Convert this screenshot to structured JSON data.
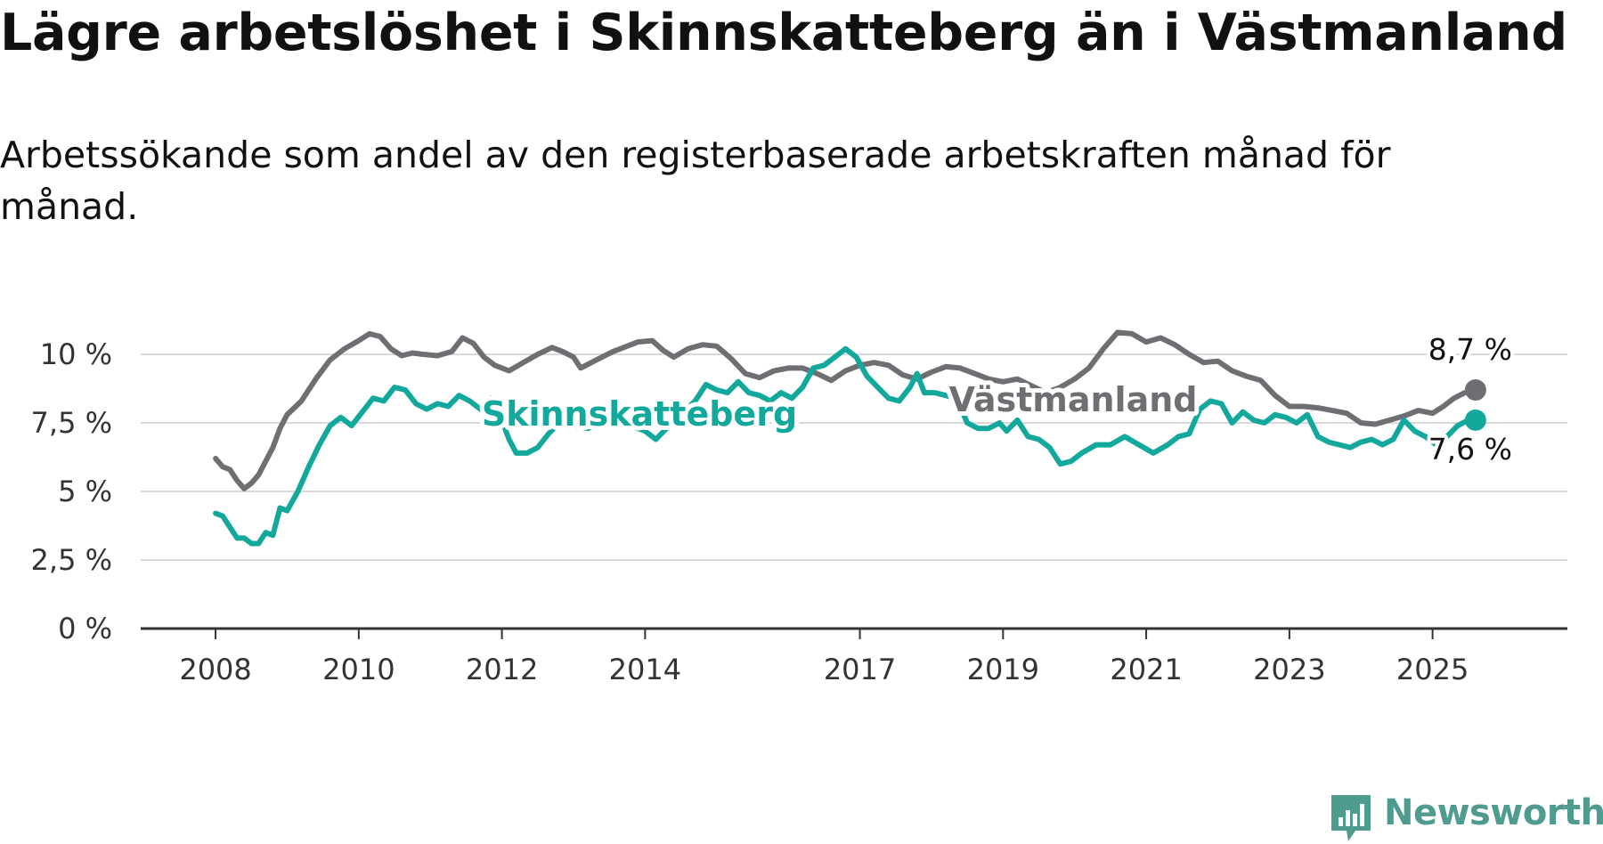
{
  "title": "Lägre arbetslöshet i Skinnskatteberg än i Västmanland",
  "subtitle": "Arbetssökande som andel av den registerbaserade arbetskraften månad för månad.",
  "brand": {
    "name": "Newsworthy",
    "icon": "bar-chart-icon",
    "color": "#4f9b8f"
  },
  "chart_data": {
    "type": "line",
    "title": "Lägre arbetslöshet i Skinnskatteberg än i Västmanland",
    "subtitle": "Arbetssökande som andel av den registerbaserade arbetskraften månad för månad.",
    "xlabel": "",
    "ylabel": "",
    "x_unit": "year",
    "x_range": [
      2007.85,
      2025.95
    ],
    "xticks": [
      2008,
      2010,
      2012,
      2014,
      2017,
      2019,
      2021,
      2023,
      2025
    ],
    "xtick_labels": [
      "2008",
      "2010",
      "2012",
      "2014",
      "2017",
      "2019",
      "2021",
      "2023",
      "2025"
    ],
    "ylim": [
      0,
      10
    ],
    "yticks": [
      0,
      2.5,
      5,
      7.5,
      10
    ],
    "ytick_labels": [
      "0 %",
      "2,5 %",
      "5 %",
      "7,5 %",
      "10 %"
    ],
    "grid": "horizontal",
    "legend": "direct labels on lines",
    "series": [
      {
        "name": "Västmanland",
        "color": "#6f6e73",
        "end_label": "8,7 %",
        "points": [
          [
            2008.0,
            6.2
          ],
          [
            2008.1,
            5.9
          ],
          [
            2008.2,
            5.8
          ],
          [
            2008.3,
            5.4
          ],
          [
            2008.4,
            5.1
          ],
          [
            2008.5,
            5.3
          ],
          [
            2008.6,
            5.6
          ],
          [
            2008.7,
            6.1
          ],
          [
            2008.8,
            6.6
          ],
          [
            2008.9,
            7.3
          ],
          [
            2009.0,
            7.8
          ],
          [
            2009.2,
            8.3
          ],
          [
            2009.4,
            9.1
          ],
          [
            2009.6,
            9.8
          ],
          [
            2009.8,
            10.2
          ],
          [
            2010.0,
            10.5
          ],
          [
            2010.15,
            10.75
          ],
          [
            2010.3,
            10.65
          ],
          [
            2010.45,
            10.2
          ],
          [
            2010.6,
            9.95
          ],
          [
            2010.75,
            10.05
          ],
          [
            2010.9,
            10.0
          ],
          [
            2011.1,
            9.95
          ],
          [
            2011.3,
            10.1
          ],
          [
            2011.45,
            10.6
          ],
          [
            2011.6,
            10.4
          ],
          [
            2011.75,
            9.9
          ],
          [
            2011.9,
            9.6
          ],
          [
            2012.1,
            9.4
          ],
          [
            2012.3,
            9.7
          ],
          [
            2012.5,
            10.0
          ],
          [
            2012.7,
            10.25
          ],
          [
            2012.85,
            10.1
          ],
          [
            2013.0,
            9.9
          ],
          [
            2013.1,
            9.5
          ],
          [
            2013.25,
            9.7
          ],
          [
            2013.4,
            9.9
          ],
          [
            2013.55,
            10.1
          ],
          [
            2013.7,
            10.25
          ],
          [
            2013.9,
            10.45
          ],
          [
            2014.1,
            10.5
          ],
          [
            2014.25,
            10.15
          ],
          [
            2014.4,
            9.9
          ],
          [
            2014.6,
            10.2
          ],
          [
            2014.8,
            10.35
          ],
          [
            2015.0,
            10.3
          ],
          [
            2015.2,
            9.85
          ],
          [
            2015.4,
            9.3
          ],
          [
            2015.6,
            9.15
          ],
          [
            2015.8,
            9.4
          ],
          [
            2016.0,
            9.5
          ],
          [
            2016.2,
            9.5
          ],
          [
            2016.4,
            9.3
          ],
          [
            2016.6,
            9.05
          ],
          [
            2016.8,
            9.4
          ],
          [
            2017.0,
            9.6
          ],
          [
            2017.2,
            9.7
          ],
          [
            2017.4,
            9.6
          ],
          [
            2017.6,
            9.25
          ],
          [
            2017.8,
            9.1
          ],
          [
            2018.0,
            9.35
          ],
          [
            2018.2,
            9.55
          ],
          [
            2018.4,
            9.5
          ],
          [
            2018.6,
            9.3
          ],
          [
            2018.8,
            9.1
          ],
          [
            2019.0,
            9.0
          ],
          [
            2019.2,
            9.1
          ],
          [
            2019.4,
            8.85
          ],
          [
            2019.6,
            8.6
          ],
          [
            2019.8,
            8.8
          ],
          [
            2020.0,
            9.1
          ],
          [
            2020.2,
            9.5
          ],
          [
            2020.4,
            10.2
          ],
          [
            2020.6,
            10.8
          ],
          [
            2020.8,
            10.75
          ],
          [
            2021.0,
            10.45
          ],
          [
            2021.2,
            10.6
          ],
          [
            2021.4,
            10.35
          ],
          [
            2021.6,
            10.0
          ],
          [
            2021.8,
            9.7
          ],
          [
            2022.0,
            9.75
          ],
          [
            2022.2,
            9.4
          ],
          [
            2022.4,
            9.2
          ],
          [
            2022.6,
            9.05
          ],
          [
            2022.8,
            8.5
          ],
          [
            2023.0,
            8.1
          ],
          [
            2023.2,
            8.1
          ],
          [
            2023.4,
            8.05
          ],
          [
            2023.6,
            7.95
          ],
          [
            2023.8,
            7.85
          ],
          [
            2024.0,
            7.5
          ],
          [
            2024.2,
            7.45
          ],
          [
            2024.4,
            7.6
          ],
          [
            2024.6,
            7.75
          ],
          [
            2024.8,
            7.95
          ],
          [
            2025.0,
            7.85
          ],
          [
            2025.15,
            8.1
          ],
          [
            2025.3,
            8.4
          ],
          [
            2025.45,
            8.6
          ],
          [
            2025.6,
            8.7
          ]
        ]
      },
      {
        "name": "Skinnskatteberg",
        "color": "#12a89c",
        "end_label": "7,6 %",
        "points": [
          [
            2008.0,
            4.2
          ],
          [
            2008.1,
            4.1
          ],
          [
            2008.2,
            3.7
          ],
          [
            2008.3,
            3.3
          ],
          [
            2008.4,
            3.3
          ],
          [
            2008.5,
            3.1
          ],
          [
            2008.6,
            3.1
          ],
          [
            2008.7,
            3.5
          ],
          [
            2008.8,
            3.4
          ],
          [
            2008.9,
            4.4
          ],
          [
            2009.0,
            4.3
          ],
          [
            2009.15,
            5.0
          ],
          [
            2009.3,
            5.9
          ],
          [
            2009.45,
            6.7
          ],
          [
            2009.6,
            7.4
          ],
          [
            2009.75,
            7.7
          ],
          [
            2009.9,
            7.4
          ],
          [
            2010.05,
            7.9
          ],
          [
            2010.2,
            8.4
          ],
          [
            2010.35,
            8.3
          ],
          [
            2010.5,
            8.8
          ],
          [
            2010.65,
            8.7
          ],
          [
            2010.8,
            8.2
          ],
          [
            2010.95,
            8.0
          ],
          [
            2011.1,
            8.2
          ],
          [
            2011.25,
            8.1
          ],
          [
            2011.4,
            8.5
          ],
          [
            2011.55,
            8.3
          ],
          [
            2011.7,
            8.0
          ],
          [
            2011.85,
            8.4
          ],
          [
            2012.0,
            7.6
          ],
          [
            2012.1,
            6.9
          ],
          [
            2012.2,
            6.4
          ],
          [
            2012.35,
            6.4
          ],
          [
            2012.5,
            6.6
          ],
          [
            2012.65,
            7.1
          ],
          [
            2012.8,
            7.5
          ],
          [
            2013.0,
            7.4
          ],
          [
            2013.2,
            7.3
          ],
          [
            2013.4,
            7.5
          ],
          [
            2013.6,
            7.6
          ],
          [
            2013.8,
            7.4
          ],
          [
            2014.0,
            7.2
          ],
          [
            2014.15,
            6.9
          ],
          [
            2014.3,
            7.3
          ],
          [
            2014.5,
            7.8
          ],
          [
            2014.7,
            8.3
          ],
          [
            2014.85,
            8.9
          ],
          [
            2015.0,
            8.7
          ],
          [
            2015.15,
            8.6
          ],
          [
            2015.3,
            9.0
          ],
          [
            2015.45,
            8.6
          ],
          [
            2015.6,
            8.5
          ],
          [
            2015.75,
            8.3
          ],
          [
            2015.9,
            8.6
          ],
          [
            2016.05,
            8.4
          ],
          [
            2016.2,
            8.8
          ],
          [
            2016.35,
            9.5
          ],
          [
            2016.5,
            9.6
          ],
          [
            2016.65,
            9.9
          ],
          [
            2016.8,
            10.2
          ],
          [
            2016.95,
            9.9
          ],
          [
            2017.1,
            9.2
          ],
          [
            2017.25,
            8.8
          ],
          [
            2017.4,
            8.4
          ],
          [
            2017.55,
            8.3
          ],
          [
            2017.7,
            8.8
          ],
          [
            2017.8,
            9.3
          ],
          [
            2017.9,
            8.6
          ],
          [
            2018.05,
            8.6
          ],
          [
            2018.2,
            8.5
          ],
          [
            2018.35,
            8.4
          ],
          [
            2018.5,
            7.5
          ],
          [
            2018.65,
            7.3
          ],
          [
            2018.8,
            7.3
          ],
          [
            2018.95,
            7.5
          ],
          [
            2019.05,
            7.2
          ],
          [
            2019.2,
            7.6
          ],
          [
            2019.35,
            7.0
          ],
          [
            2019.5,
            6.9
          ],
          [
            2019.65,
            6.6
          ],
          [
            2019.8,
            6.0
          ],
          [
            2019.95,
            6.1
          ],
          [
            2020.1,
            6.4
          ],
          [
            2020.3,
            6.7
          ],
          [
            2020.5,
            6.7
          ],
          [
            2020.7,
            7.0
          ],
          [
            2020.9,
            6.7
          ],
          [
            2021.1,
            6.4
          ],
          [
            2021.3,
            6.7
          ],
          [
            2021.45,
            7.0
          ],
          [
            2021.6,
            7.1
          ],
          [
            2021.75,
            8.0
          ],
          [
            2021.9,
            8.3
          ],
          [
            2022.05,
            8.2
          ],
          [
            2022.2,
            7.5
          ],
          [
            2022.35,
            7.9
          ],
          [
            2022.5,
            7.6
          ],
          [
            2022.65,
            7.5
          ],
          [
            2022.8,
            7.8
          ],
          [
            2022.95,
            7.7
          ],
          [
            2023.1,
            7.5
          ],
          [
            2023.25,
            7.8
          ],
          [
            2023.4,
            7.0
          ],
          [
            2023.55,
            6.8
          ],
          [
            2023.7,
            6.7
          ],
          [
            2023.85,
            6.6
          ],
          [
            2024.0,
            6.8
          ],
          [
            2024.15,
            6.9
          ],
          [
            2024.3,
            6.7
          ],
          [
            2024.45,
            6.9
          ],
          [
            2024.6,
            7.6
          ],
          [
            2024.75,
            7.2
          ],
          [
            2024.9,
            7.0
          ],
          [
            2025.05,
            6.7
          ],
          [
            2025.2,
            7.0
          ],
          [
            2025.35,
            7.4
          ],
          [
            2025.5,
            7.6
          ],
          [
            2025.6,
            7.6
          ]
        ]
      }
    ]
  }
}
